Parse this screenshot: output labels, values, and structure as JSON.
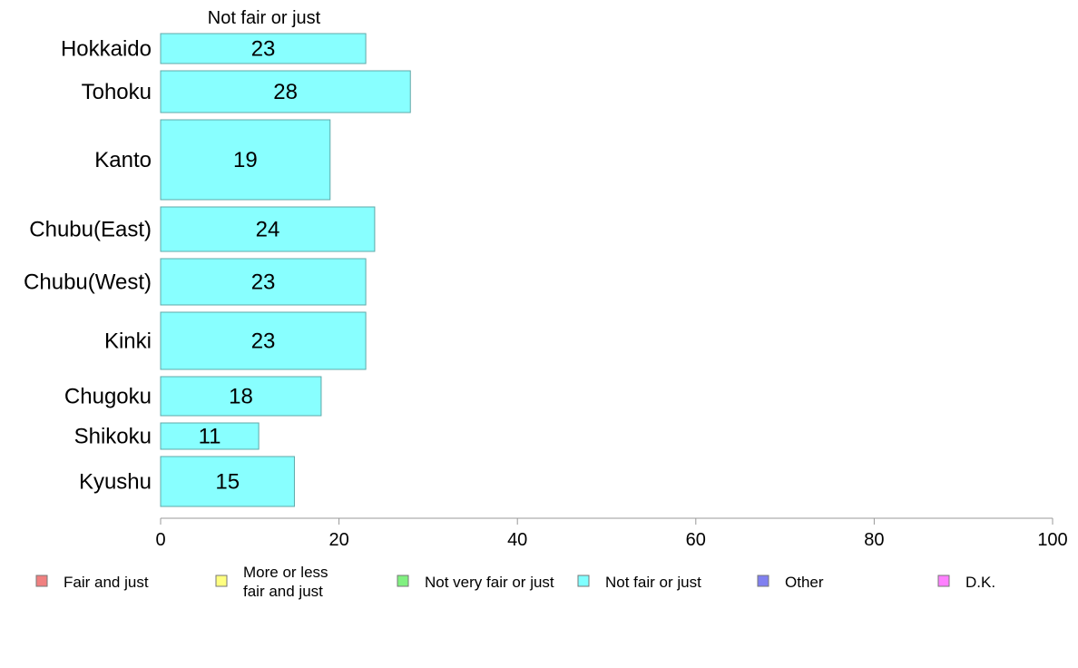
{
  "chart_data": {
    "type": "bar",
    "orientation": "horizontal",
    "title": "Not fair or just",
    "categories": [
      "Hokkaido",
      "Tohoku",
      "Kanto",
      "Chubu(East)",
      "Chubu(West)",
      "Kinki",
      "Chugoku",
      "Shikoku",
      "Kyushu"
    ],
    "series": [
      {
        "name": "Not fair or just",
        "values": [
          23,
          28,
          19,
          24,
          23,
          23,
          18,
          11,
          15
        ]
      }
    ],
    "value_labels": [
      "23",
      "28",
      "19",
      "24",
      "23",
      "23",
      "18",
      "11",
      "15"
    ],
    "xlim": [
      0,
      100
    ],
    "xticks": [
      0,
      20,
      40,
      60,
      80,
      100
    ],
    "xtick_labels": [
      "0",
      "20",
      "40",
      "60",
      "80",
      "100"
    ],
    "grid": false,
    "bar_color": "#88ffff",
    "bar_edge_color": "#5fa8a8",
    "legend": {
      "placement": "bottom",
      "items": [
        {
          "label": [
            "Fair and just"
          ],
          "color": "#f08080"
        },
        {
          "label": [
            "More or less",
            "fair and just"
          ],
          "color": "#ffff80"
        },
        {
          "label": [
            "Not very fair or just"
          ],
          "color": "#80f080"
        },
        {
          "label": [
            "Not fair or just"
          ],
          "color": "#80ffff"
        },
        {
          "label": [
            "Other"
          ],
          "color": "#8080f0"
        },
        {
          "label": [
            "D.K."
          ],
          "color": "#ff80ff"
        }
      ]
    }
  }
}
